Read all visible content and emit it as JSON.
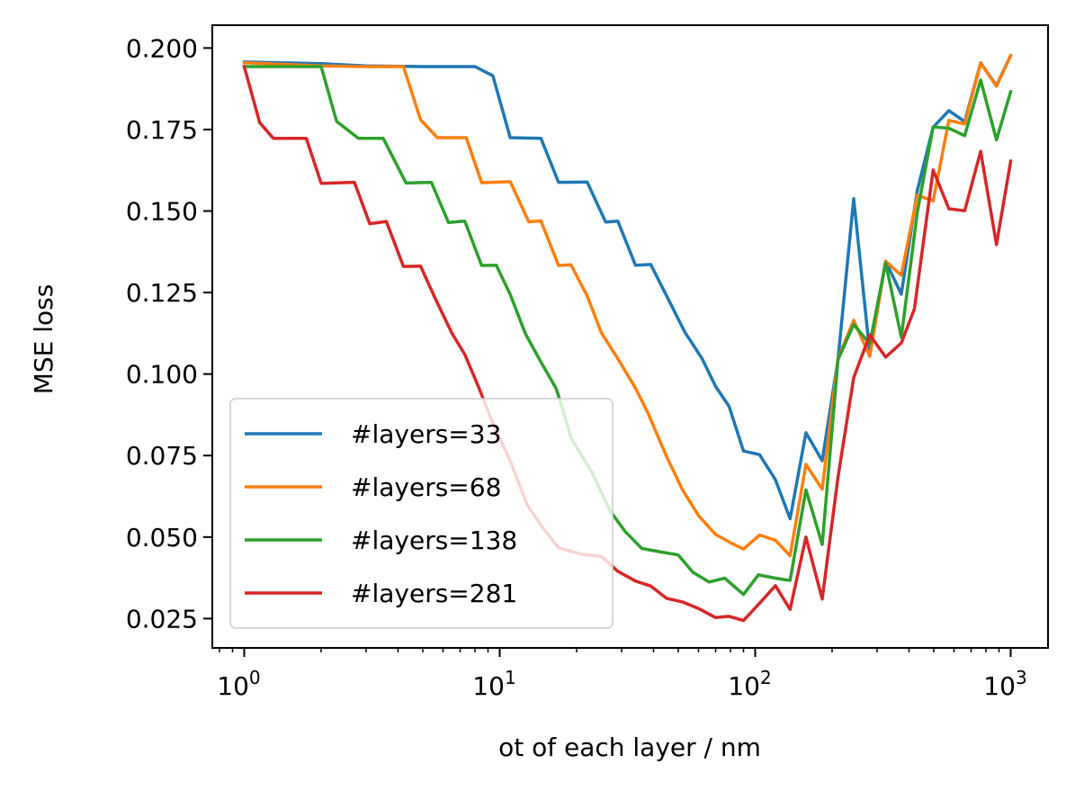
{
  "chart_data": {
    "type": "line",
    "xscale": "log",
    "xlabel": "ot of each layer / nm",
    "ylabel": "MSE loss",
    "xlim": [
      0.75,
      1400
    ],
    "ylim": [
      0.016,
      0.207
    ],
    "x_ticks": [
      {
        "value": 1,
        "base": "10",
        "exp": "0"
      },
      {
        "value": 10,
        "base": "10",
        "exp": "1"
      },
      {
        "value": 100,
        "base": "10",
        "exp": "2"
      },
      {
        "value": 1000,
        "base": "10",
        "exp": "3"
      }
    ],
    "y_ticks": [
      "0.025",
      "0.050",
      "0.075",
      "0.100",
      "0.125",
      "0.150",
      "0.175",
      "0.200"
    ],
    "grid": false,
    "legend_position": "lower-left",
    "series": [
      {
        "name": "#layers=33",
        "color": "#1f77b4",
        "points": [
          [
            1,
            0.1957
          ],
          [
            2,
            0.1952
          ],
          [
            3,
            0.1945
          ],
          [
            5,
            0.1943
          ],
          [
            8,
            0.1943
          ],
          [
            9.4,
            0.1915
          ],
          [
            11,
            0.1725
          ],
          [
            14.5,
            0.1723
          ],
          [
            17,
            0.1588
          ],
          [
            22,
            0.1589
          ],
          [
            26,
            0.1466
          ],
          [
            29,
            0.1469
          ],
          [
            34,
            0.1334
          ],
          [
            39,
            0.1336
          ],
          [
            45,
            0.124
          ],
          [
            53,
            0.1129
          ],
          [
            62,
            0.1047
          ],
          [
            70,
            0.0962
          ],
          [
            79,
            0.0901
          ],
          [
            90,
            0.0764
          ],
          [
            104,
            0.0753
          ],
          [
            120,
            0.0676
          ],
          [
            137,
            0.0556
          ],
          [
            158,
            0.082
          ],
          [
            183,
            0.0734
          ],
          [
            211,
            0.1046
          ],
          [
            243,
            0.1538
          ],
          [
            281,
            0.1064
          ],
          [
            324,
            0.1346
          ],
          [
            373,
            0.1245
          ],
          [
            431,
            0.1563
          ],
          [
            497,
            0.1757
          ],
          [
            573,
            0.1808
          ],
          [
            661,
            0.1774
          ],
          [
            763,
            0.1955
          ],
          [
            880,
            0.1885
          ],
          [
            1000,
            0.1977
          ]
        ]
      },
      {
        "name": "#layers=68",
        "color": "#ff7f0e",
        "points": [
          [
            1,
            0.1955
          ],
          [
            2,
            0.1945
          ],
          [
            3,
            0.1943
          ],
          [
            4.2,
            0.1943
          ],
          [
            4.9,
            0.178
          ],
          [
            5.7,
            0.1725
          ],
          [
            7.4,
            0.1725
          ],
          [
            8.5,
            0.1587
          ],
          [
            11,
            0.159
          ],
          [
            13,
            0.1467
          ],
          [
            14.5,
            0.147
          ],
          [
            17,
            0.1333
          ],
          [
            19,
            0.1335
          ],
          [
            22,
            0.124
          ],
          [
            25,
            0.1127
          ],
          [
            29,
            0.1047
          ],
          [
            34,
            0.0957
          ],
          [
            38,
            0.0881
          ],
          [
            45,
            0.0747
          ],
          [
            52,
            0.0644
          ],
          [
            60,
            0.0566
          ],
          [
            70,
            0.0508
          ],
          [
            80,
            0.0483
          ],
          [
            90,
            0.0463
          ],
          [
            104,
            0.0506
          ],
          [
            120,
            0.049
          ],
          [
            137,
            0.0443
          ],
          [
            158,
            0.0723
          ],
          [
            183,
            0.0647
          ],
          [
            211,
            0.1048
          ],
          [
            243,
            0.1165
          ],
          [
            281,
            0.1054
          ],
          [
            324,
            0.1346
          ],
          [
            373,
            0.1303
          ],
          [
            431,
            0.1549
          ],
          [
            497,
            0.1531
          ],
          [
            573,
            0.1778
          ],
          [
            661,
            0.1767
          ],
          [
            763,
            0.1954
          ],
          [
            880,
            0.1883
          ],
          [
            1000,
            0.1977
          ]
        ]
      },
      {
        "name": "#layers=138",
        "color": "#2ca02c",
        "points": [
          [
            1,
            0.1943
          ],
          [
            2,
            0.1943
          ],
          [
            2.3,
            0.1775
          ],
          [
            2.8,
            0.1723
          ],
          [
            3.5,
            0.1723
          ],
          [
            4.3,
            0.1586
          ],
          [
            5.4,
            0.1588
          ],
          [
            6.3,
            0.1465
          ],
          [
            7.3,
            0.1469
          ],
          [
            8.5,
            0.1333
          ],
          [
            9.7,
            0.1334
          ],
          [
            11,
            0.1244
          ],
          [
            12.6,
            0.1124
          ],
          [
            14.5,
            0.1037
          ],
          [
            16.6,
            0.0957
          ],
          [
            17.5,
            0.0902
          ],
          [
            19,
            0.0804
          ],
          [
            23,
            0.0698
          ],
          [
            27,
            0.0581
          ],
          [
            31,
            0.0517
          ],
          [
            36,
            0.0465
          ],
          [
            43,
            0.0454
          ],
          [
            50,
            0.0445
          ],
          [
            57,
            0.0392
          ],
          [
            66,
            0.0362
          ],
          [
            76,
            0.0374
          ],
          [
            90,
            0.0324
          ],
          [
            103,
            0.0384
          ],
          [
            120,
            0.0374
          ],
          [
            137,
            0.0367
          ],
          [
            158,
            0.0645
          ],
          [
            183,
            0.0477
          ],
          [
            211,
            0.1045
          ],
          [
            243,
            0.1152
          ],
          [
            281,
            0.1093
          ],
          [
            324,
            0.1341
          ],
          [
            373,
            0.1113
          ],
          [
            431,
            0.1496
          ],
          [
            497,
            0.1758
          ],
          [
            573,
            0.1754
          ],
          [
            661,
            0.1731
          ],
          [
            763,
            0.1902
          ],
          [
            880,
            0.1718
          ],
          [
            1000,
            0.1866
          ]
        ]
      },
      {
        "name": "#layers=281",
        "color": "#d62728",
        "points": [
          [
            1,
            0.1943
          ],
          [
            1.15,
            0.1771
          ],
          [
            1.3,
            0.1723
          ],
          [
            1.75,
            0.1723
          ],
          [
            2,
            0.1585
          ],
          [
            2.7,
            0.1588
          ],
          [
            3.1,
            0.1461
          ],
          [
            3.6,
            0.1468
          ],
          [
            4.2,
            0.133
          ],
          [
            4.9,
            0.1331
          ],
          [
            5.6,
            0.1231
          ],
          [
            6.5,
            0.1125
          ],
          [
            7.3,
            0.106
          ],
          [
            8.3,
            0.0957
          ],
          [
            9.4,
            0.0848
          ],
          [
            11,
            0.0733
          ],
          [
            12.8,
            0.0599
          ],
          [
            14.8,
            0.0527
          ],
          [
            17,
            0.0467
          ],
          [
            21,
            0.0447
          ],
          [
            25,
            0.0441
          ],
          [
            29,
            0.0395
          ],
          [
            34,
            0.0365
          ],
          [
            39,
            0.035
          ],
          [
            45,
            0.0312
          ],
          [
            52,
            0.0301
          ],
          [
            60,
            0.0281
          ],
          [
            70,
            0.0253
          ],
          [
            79,
            0.0257
          ],
          [
            90,
            0.0244
          ],
          [
            104,
            0.0297
          ],
          [
            120,
            0.0351
          ],
          [
            137,
            0.0278
          ],
          [
            158,
            0.05
          ],
          [
            183,
            0.031
          ],
          [
            211,
            0.0685
          ],
          [
            243,
            0.0989
          ],
          [
            281,
            0.112
          ],
          [
            324,
            0.1052
          ],
          [
            373,
            0.1095
          ],
          [
            420,
            0.12
          ],
          [
            497,
            0.1626
          ],
          [
            573,
            0.1507
          ],
          [
            661,
            0.1501
          ],
          [
            763,
            0.1683
          ],
          [
            880,
            0.1397
          ],
          [
            1000,
            0.1653
          ]
        ]
      }
    ]
  }
}
